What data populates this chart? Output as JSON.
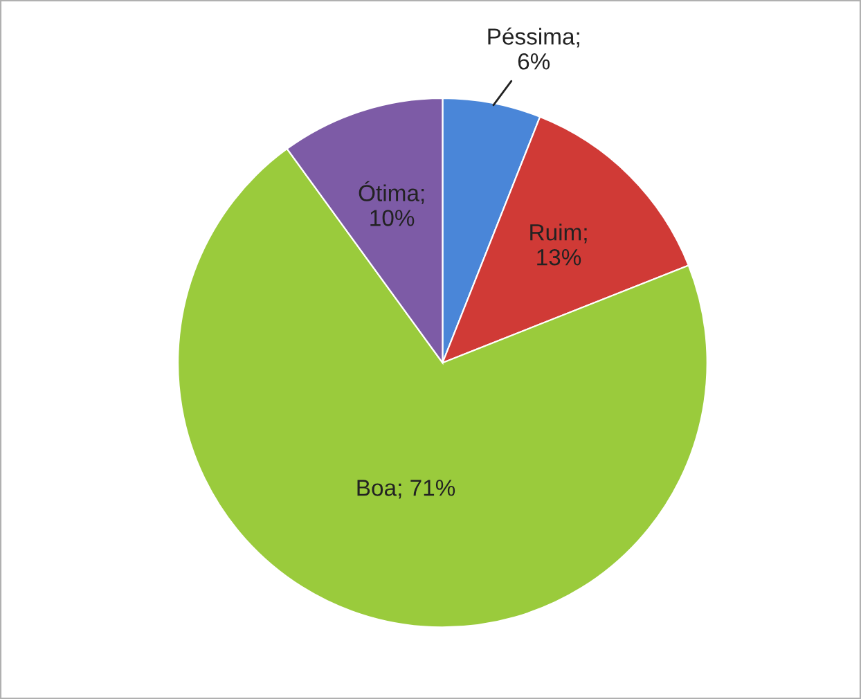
{
  "chart_data": {
    "type": "pie",
    "categories": [
      "Péssima",
      "Ruim",
      "Boa",
      "Ótima"
    ],
    "values": [
      6,
      13,
      71,
      10
    ],
    "colors": [
      "#4a86d8",
      "#d03a36",
      "#9acb3c",
      "#7d5ba6"
    ],
    "value_labels": [
      ";\n6%",
      ";\n13%",
      "; 71%",
      ";\n10%"
    ],
    "legend": false
  }
}
